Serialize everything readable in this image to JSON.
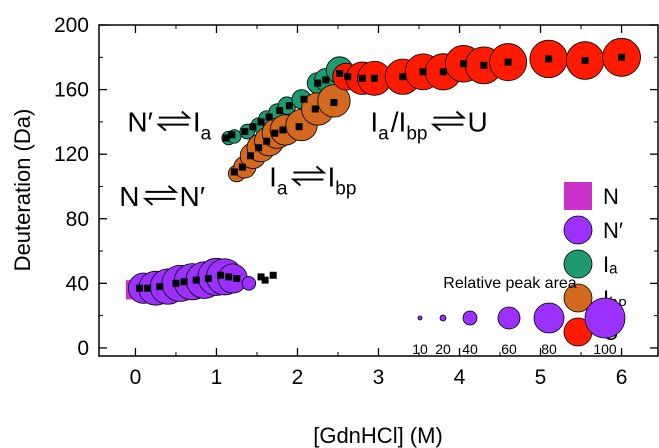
{
  "chart_data": {
    "type": "scatter",
    "xlabel": "[GdnHCl] (M)",
    "ylabel": "Deuteration (Da)",
    "xlim": [
      -0.45,
      6.45
    ],
    "ylim": [
      -5,
      200
    ],
    "x_ticks": [
      "0",
      "1",
      "2",
      "3",
      "4",
      "5",
      "6"
    ],
    "y_ticks": [
      "0",
      "40",
      "80",
      "120",
      "160",
      "200"
    ],
    "grid": false,
    "legend_placement": "right",
    "series": [
      {
        "name": "N",
        "marker": "square",
        "color": "#cc33cc",
        "points": [
          [
            0.0,
            36,
            20
          ]
        ]
      },
      {
        "name": "N′",
        "marker": "circle",
        "color": "#9b30ff",
        "points": [
          [
            0.1,
            37,
            60
          ],
          [
            0.25,
            37,
            78
          ],
          [
            0.4,
            38,
            85
          ],
          [
            0.55,
            40,
            90
          ],
          [
            0.7,
            41,
            90
          ],
          [
            0.85,
            42,
            92
          ],
          [
            1.0,
            44,
            95
          ],
          [
            1.1,
            44,
            90
          ],
          [
            1.2,
            43,
            55
          ],
          [
            1.4,
            40,
            8
          ]
        ]
      },
      {
        "name": "Iₐ",
        "marker": "circle",
        "color": "#1e9b6e",
        "points": [
          [
            1.15,
            130,
            8
          ],
          [
            1.22,
            131,
            8
          ],
          [
            1.38,
            134,
            10
          ],
          [
            1.52,
            138,
            10
          ],
          [
            1.62,
            142,
            12
          ],
          [
            1.75,
            146,
            14
          ],
          [
            1.87,
            150,
            16
          ],
          [
            2.05,
            154,
            20
          ],
          [
            2.25,
            164,
            25
          ],
          [
            2.35,
            166,
            30
          ],
          [
            2.52,
            172,
            45
          ]
        ]
      },
      {
        "name": "Iₕₚ",
        "marker": "circle",
        "color": "#d2691e",
        "points": [
          [
            1.25,
            108,
            14
          ],
          [
            1.35,
            112,
            28
          ],
          [
            1.45,
            119,
            40
          ],
          [
            1.55,
            124,
            50
          ],
          [
            1.65,
            128,
            55
          ],
          [
            1.75,
            133,
            60
          ],
          [
            1.85,
            135,
            60
          ],
          [
            2.05,
            138,
            65
          ],
          [
            2.25,
            148,
            70
          ],
          [
            2.45,
            153,
            70
          ]
        ]
      },
      {
        "name": "U",
        "marker": "circle",
        "color": "#ff1a00",
        "points": [
          [
            2.6,
            168,
            45
          ],
          [
            2.8,
            167,
            70
          ],
          [
            2.95,
            167,
            78
          ],
          [
            3.3,
            168,
            85
          ],
          [
            3.55,
            171,
            88
          ],
          [
            3.8,
            171,
            90
          ],
          [
            4.05,
            176,
            92
          ],
          [
            4.3,
            175,
            94
          ],
          [
            4.6,
            177,
            95
          ],
          [
            5.1,
            179,
            97
          ],
          [
            5.55,
            178,
            98
          ],
          [
            6.0,
            180,
            100
          ]
        ]
      }
    ],
    "small_markers": [
      [
        0.05,
        37
      ],
      [
        0.15,
        37
      ],
      [
        0.3,
        38
      ],
      [
        0.5,
        40
      ],
      [
        0.6,
        41
      ],
      [
        0.75,
        42
      ],
      [
        0.9,
        43
      ],
      [
        1.05,
        45
      ],
      [
        1.15,
        44
      ],
      [
        1.25,
        43
      ],
      [
        1.55,
        44
      ],
      [
        1.6,
        42
      ],
      [
        1.7,
        45
      ],
      [
        1.12,
        130
      ],
      [
        1.19,
        132
      ],
      [
        1.35,
        134
      ],
      [
        1.45,
        137
      ],
      [
        1.55,
        140
      ],
      [
        1.65,
        143
      ],
      [
        1.78,
        147
      ],
      [
        1.9,
        150
      ],
      [
        2.08,
        154
      ],
      [
        2.25,
        164
      ],
      [
        2.35,
        166
      ],
      [
        2.52,
        170
      ],
      [
        1.22,
        109
      ],
      [
        1.32,
        112
      ],
      [
        1.42,
        119
      ],
      [
        1.52,
        124
      ],
      [
        1.62,
        128
      ],
      [
        1.72,
        133
      ],
      [
        1.82,
        135
      ],
      [
        2.02,
        137
      ],
      [
        2.22,
        148
      ],
      [
        2.45,
        152
      ],
      [
        2.62,
        168
      ],
      [
        2.8,
        167
      ],
      [
        2.95,
        167
      ],
      [
        3.3,
        168
      ],
      [
        3.55,
        171
      ],
      [
        3.8,
        171
      ],
      [
        4.05,
        176
      ],
      [
        4.3,
        175
      ],
      [
        4.6,
        177
      ],
      [
        5.1,
        179
      ],
      [
        5.55,
        178
      ],
      [
        6.0,
        180
      ]
    ],
    "annotations": [
      {
        "id": "n-to-nprime",
        "left": "N",
        "right": "N′",
        "x": -0.2,
        "y": 88
      },
      {
        "id": "nprime-to-ia",
        "left": "N′",
        "right": "I",
        "right_sub": "a",
        "x": -0.1,
        "y": 134
      },
      {
        "id": "ia-to-ibp",
        "left": "I",
        "left_sub": "a",
        "right": "I",
        "right_sub": "bp",
        "x": 1.65,
        "y": 100
      },
      {
        "id": "iaibp-to-u",
        "left": "I",
        "left_sub": "a",
        "middle": "/I",
        "middle_sub": "bp",
        "right": "U",
        "x": 2.9,
        "y": 134
      }
    ],
    "size_legend": {
      "title": "Relative peak area",
      "values": [
        10,
        20,
        40,
        60,
        80,
        100
      ],
      "labels": [
        "10",
        "20",
        "40",
        "60",
        "80",
        "100"
      ],
      "color": "#9b30ff"
    }
  }
}
